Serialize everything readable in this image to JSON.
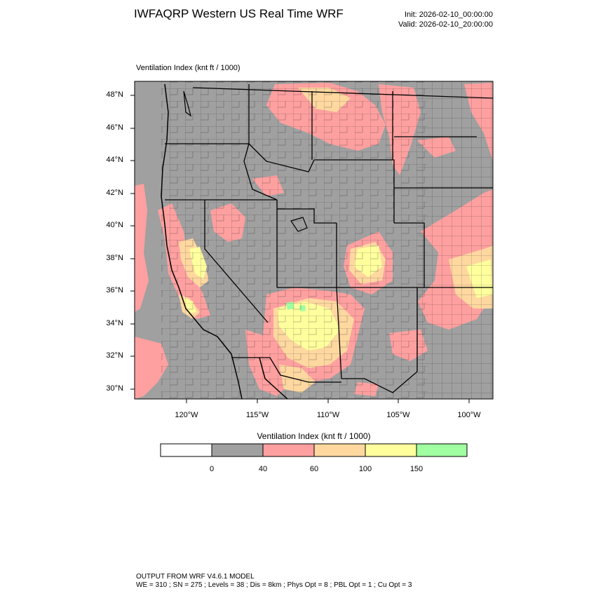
{
  "header": {
    "title": "IWFAQRP Western US Real Time WRF",
    "init": "Init: 2026-02-10_00:00:00",
    "valid": "Valid: 2026-02-10_20:00:00"
  },
  "map": {
    "field_label": "Ventilation Index   (knt ft / 1000)",
    "lat_labels": [
      "48°N",
      "46°N",
      "44°N",
      "42°N",
      "40°N",
      "38°N",
      "36°N",
      "34°N",
      "32°N",
      "30°N"
    ],
    "lon_labels": [
      "120°W",
      "115°W",
      "110°W",
      "105°W",
      "100°W"
    ],
    "background_color": "#a0a0a0"
  },
  "colorbar": {
    "title": "Ventilation Index   (knt ft / 1000)",
    "colors": [
      "#ffffff",
      "#a0a0a0",
      "#ffa0a0",
      "#ffd8a0",
      "#ffff9e",
      "#a0ffa0"
    ],
    "labels": [
      "0",
      "40",
      "60",
      "100",
      "150"
    ]
  },
  "footer": {
    "line1": "OUTPUT FROM WRF V4.6.1 MODEL",
    "line2": "WE = 310 ; SN = 275 ; Levels = 38 ; Dis = 8km ; Phys Opt = 8 ; PBL Opt = 1 ; Cu Opt = 3"
  }
}
